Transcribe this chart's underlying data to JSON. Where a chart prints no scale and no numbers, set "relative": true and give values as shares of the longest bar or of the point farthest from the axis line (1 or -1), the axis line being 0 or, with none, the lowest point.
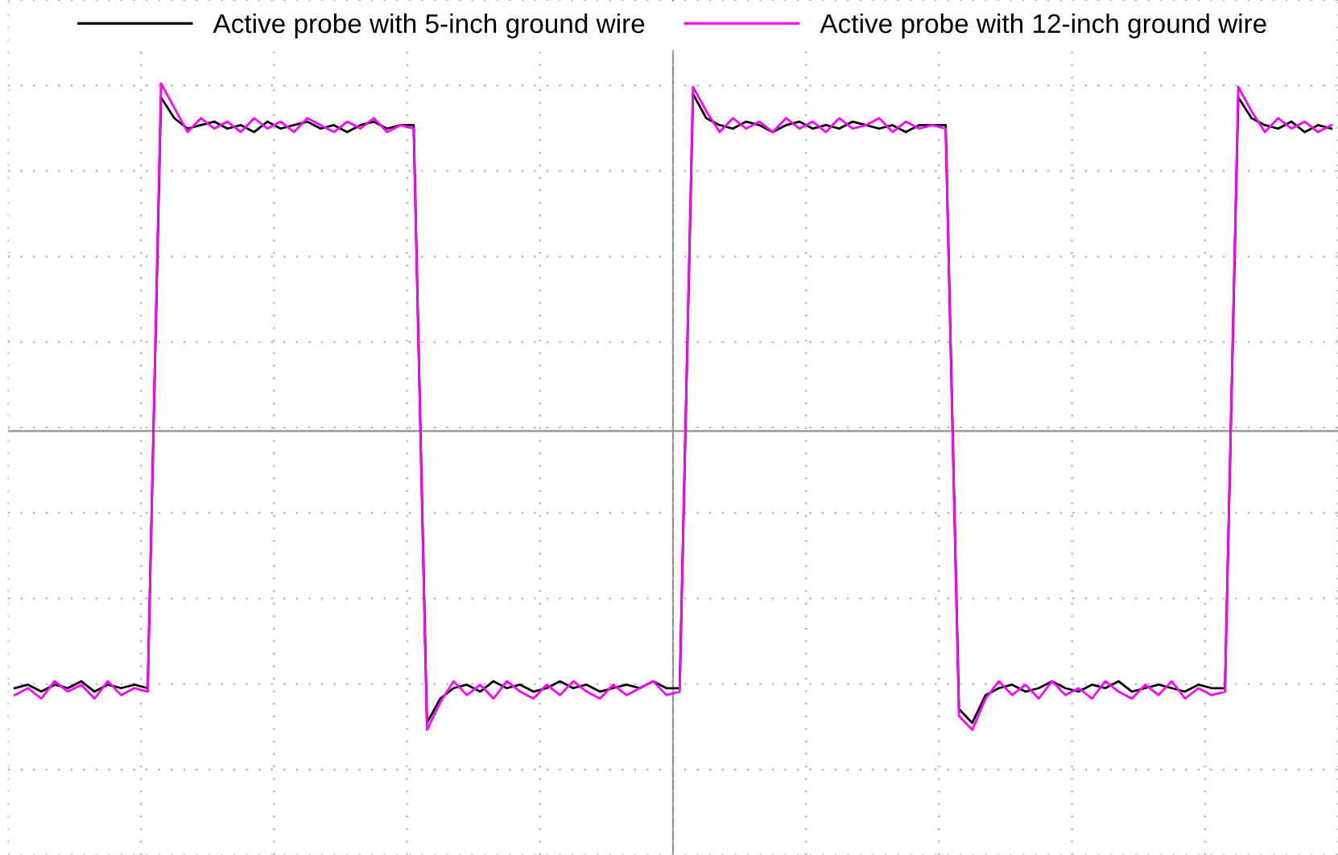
{
  "chart_data": {
    "type": "line",
    "relative": true,
    "grid": true,
    "legend": "top",
    "marker": "none",
    "line_style": "solid",
    "categories": [
      null,
      null,
      null,
      null,
      null,
      null,
      null,
      null,
      null,
      null,
      null,
      null,
      null,
      null,
      null,
      null,
      null,
      null,
      null,
      null,
      null,
      null,
      null,
      null,
      null,
      null,
      null,
      null,
      null,
      null,
      null,
      null,
      null,
      null,
      null,
      null,
      null,
      null,
      null,
      null,
      null,
      null,
      null,
      null,
      null,
      null,
      null,
      null,
      null,
      null,
      null,
      null,
      null,
      null,
      null,
      null,
      null,
      null,
      null,
      null,
      null,
      null,
      null,
      null,
      null,
      null,
      null,
      null,
      null,
      null,
      null,
      null,
      null,
      null,
      null,
      null,
      null,
      null,
      null,
      null,
      null,
      null,
      null,
      null,
      null,
      null,
      null,
      null,
      null,
      null,
      null,
      null,
      null,
      null,
      null,
      null,
      null,
      null,
      null,
      null
    ],
    "series": [
      {
        "name": "Active probe with 5-inch ground wire",
        "color": "#000000",
        "values": [
          -0.74,
          -0.73,
          -0.75,
          -0.73,
          -0.74,
          -0.72,
          -0.75,
          -0.73,
          -0.74,
          -0.73,
          -0.74,
          0.96,
          0.9,
          0.87,
          0.88,
          0.89,
          0.87,
          0.88,
          0.86,
          0.89,
          0.87,
          0.88,
          0.89,
          0.87,
          0.88,
          0.86,
          0.88,
          0.89,
          0.87,
          0.88,
          0.88,
          -0.84,
          -0.77,
          -0.74,
          -0.73,
          -0.75,
          -0.72,
          -0.74,
          -0.73,
          -0.75,
          -0.74,
          -0.72,
          -0.74,
          -0.73,
          -0.75,
          -0.74,
          -0.73,
          -0.74,
          -0.72,
          -0.74,
          -0.74,
          0.97,
          0.9,
          0.88,
          0.87,
          0.89,
          0.88,
          0.86,
          0.88,
          0.89,
          0.87,
          0.88,
          0.87,
          0.89,
          0.88,
          0.87,
          0.88,
          0.86,
          0.88,
          0.88,
          0.88,
          -0.8,
          -0.84,
          -0.76,
          -0.74,
          -0.73,
          -0.75,
          -0.74,
          -0.72,
          -0.74,
          -0.75,
          -0.73,
          -0.74,
          -0.72,
          -0.75,
          -0.74,
          -0.73,
          -0.74,
          -0.75,
          -0.73,
          -0.74,
          -0.74,
          0.96,
          0.9,
          0.88,
          0.87,
          0.89,
          0.86,
          0.88,
          0.87
        ]
      },
      {
        "name": "Active probe with 12-inch ground wire",
        "color": "#ff00ff",
        "values": [
          -0.76,
          -0.74,
          -0.77,
          -0.72,
          -0.75,
          -0.73,
          -0.77,
          -0.72,
          -0.76,
          -0.74,
          -0.75,
          1.0,
          0.93,
          0.86,
          0.9,
          0.87,
          0.89,
          0.86,
          0.9,
          0.87,
          0.89,
          0.86,
          0.9,
          0.88,
          0.86,
          0.89,
          0.87,
          0.9,
          0.86,
          0.88,
          0.87,
          -0.86,
          -0.78,
          -0.72,
          -0.76,
          -0.73,
          -0.77,
          -0.72,
          -0.75,
          -0.77,
          -0.73,
          -0.76,
          -0.72,
          -0.75,
          -0.77,
          -0.73,
          -0.76,
          -0.74,
          -0.72,
          -0.76,
          -0.75,
          0.99,
          0.92,
          0.86,
          0.9,
          0.87,
          0.89,
          0.86,
          0.9,
          0.87,
          0.89,
          0.86,
          0.9,
          0.87,
          0.88,
          0.9,
          0.86,
          0.89,
          0.87,
          0.88,
          0.87,
          -0.82,
          -0.86,
          -0.77,
          -0.72,
          -0.76,
          -0.73,
          -0.77,
          -0.72,
          -0.76,
          -0.74,
          -0.77,
          -0.72,
          -0.75,
          -0.77,
          -0.73,
          -0.76,
          -0.72,
          -0.77,
          -0.74,
          -0.76,
          -0.75,
          0.99,
          0.92,
          0.86,
          0.9,
          0.87,
          0.89,
          0.86,
          0.88
        ]
      }
    ]
  }
}
